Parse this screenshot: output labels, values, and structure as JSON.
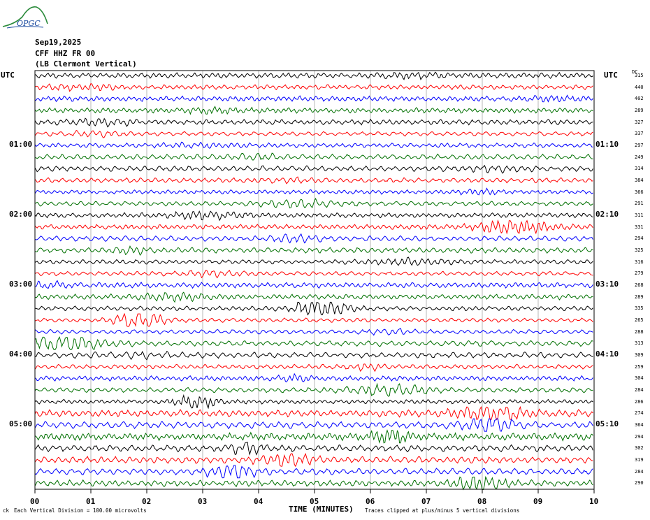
{
  "header": {
    "date": "Sep19,2025",
    "station": "CFF HHZ FR 00",
    "location": "(LB  Clermont Vertical)"
  },
  "logo": {
    "text": "OPGC"
  },
  "left_axis_label": "UTC",
  "right_axis_label": "UTC",
  "dc_label": "DC",
  "footer": {
    "scale": "Each Vertical Division =  100.00 microvolts",
    "clip": "Traces clipped at plus/minus 5 vertical divisions",
    "corner_mark": "ck"
  },
  "chart_data": {
    "type": "line",
    "xlabel": "TIME (MINUTES)",
    "x_ticks": [
      "00",
      "01",
      "02",
      "03",
      "04",
      "05",
      "06",
      "07",
      "08",
      "09",
      "10"
    ],
    "xlim": [
      0,
      10
    ],
    "left_time_labels": [
      {
        "row": 6,
        "label": "01:00"
      },
      {
        "row": 12,
        "label": "02:00"
      },
      {
        "row": 18,
        "label": "03:00"
      },
      {
        "row": 24,
        "label": "04:00"
      },
      {
        "row": 30,
        "label": "05:00"
      }
    ],
    "right_time_labels": [
      {
        "row": 6,
        "label": "01:10"
      },
      {
        "row": 12,
        "label": "02:10"
      },
      {
        "row": 18,
        "label": "03:10"
      },
      {
        "row": 24,
        "label": "04:10"
      },
      {
        "row": 30,
        "label": "05:10"
      }
    ],
    "trace_colors": [
      "#000000",
      "#ff0000",
      "#0000ff",
      "#007000"
    ],
    "dc_values": [
      315,
      440,
      402,
      289,
      327,
      337,
      297,
      249,
      314,
      384,
      366,
      291,
      311,
      331,
      294,
      325,
      316,
      279,
      268,
      289,
      335,
      265,
      288,
      313,
      309,
      259,
      304,
      284,
      286,
      274,
      364,
      294,
      302,
      319,
      284,
      290
    ],
    "grid": true
  }
}
